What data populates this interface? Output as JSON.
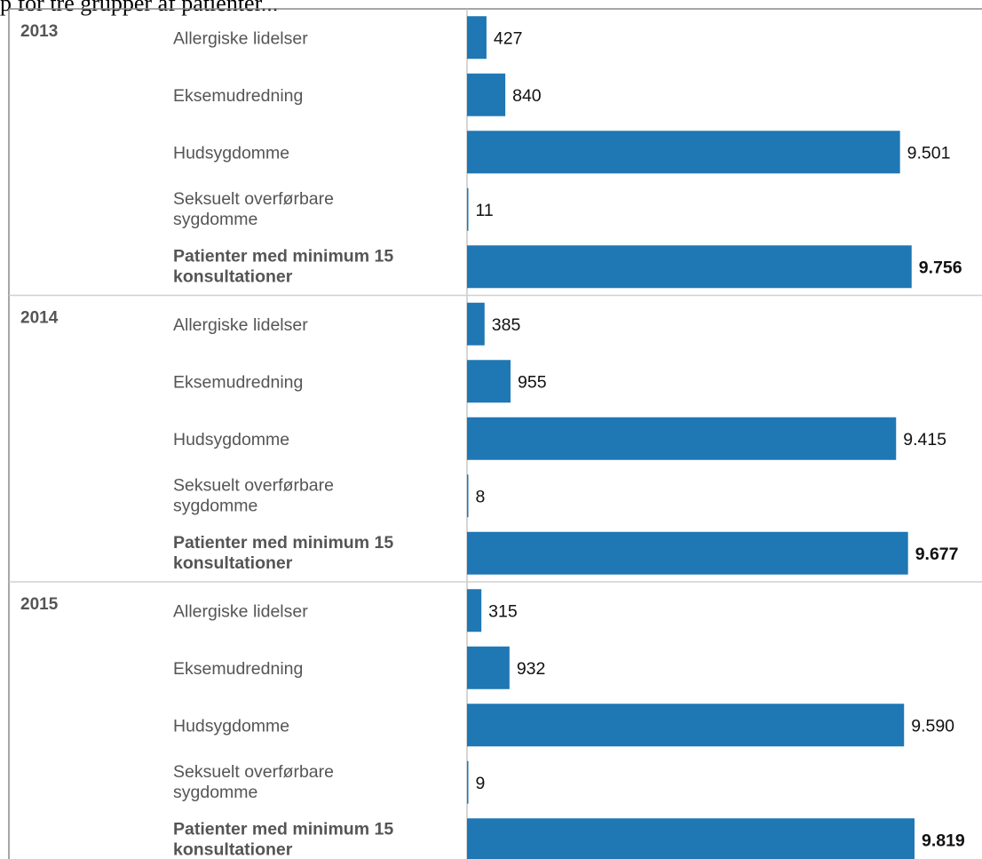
{
  "header_text": "p for tre grupper af patienter...",
  "chart_data": {
    "type": "bar",
    "orientation": "horizontal",
    "title": "",
    "xlabel": "",
    "ylabel": "",
    "grid": false,
    "colors": {
      "bar": "#1f77b4",
      "separator": "#d0d0d0",
      "frame": "#888888",
      "axis": "#c8c8c8"
    },
    "xlim": [
      0,
      11300
    ],
    "groups": [
      {
        "year": "2013",
        "items": [
          {
            "label": [
              "Allergiske lidelser"
            ],
            "value": 427,
            "value_label": "427",
            "bold": false
          },
          {
            "label": [
              "Eksemudredning"
            ],
            "value": 840,
            "value_label": "840",
            "bold": false
          },
          {
            "label": [
              "Hudsygdomme"
            ],
            "value": 9501,
            "value_label": "9.501",
            "bold": false
          },
          {
            "label": [
              "Seksuelt overførbare",
              "sygdomme"
            ],
            "value": 11,
            "value_label": "11",
            "bold": false
          },
          {
            "label": [
              "Patienter med minimum 15",
              "konsultationer"
            ],
            "value": 9756,
            "value_label": "9.756",
            "bold": true
          }
        ]
      },
      {
        "year": "2014",
        "items": [
          {
            "label": [
              "Allergiske lidelser"
            ],
            "value": 385,
            "value_label": "385",
            "bold": false
          },
          {
            "label": [
              "Eksemudredning"
            ],
            "value": 955,
            "value_label": "955",
            "bold": false
          },
          {
            "label": [
              "Hudsygdomme"
            ],
            "value": 9415,
            "value_label": "9.415",
            "bold": false
          },
          {
            "label": [
              "Seksuelt overførbare",
              "sygdomme"
            ],
            "value": 8,
            "value_label": "8",
            "bold": false
          },
          {
            "label": [
              "Patienter med minimum 15",
              "konsultationer"
            ],
            "value": 9677,
            "value_label": "9.677",
            "bold": true
          }
        ]
      },
      {
        "year": "2015",
        "items": [
          {
            "label": [
              "Allergiske lidelser"
            ],
            "value": 315,
            "value_label": "315",
            "bold": false
          },
          {
            "label": [
              "Eksemudredning"
            ],
            "value": 932,
            "value_label": "932",
            "bold": false
          },
          {
            "label": [
              "Hudsygdomme"
            ],
            "value": 9590,
            "value_label": "9.590",
            "bold": false
          },
          {
            "label": [
              "Seksuelt overførbare",
              "sygdomme"
            ],
            "value": 9,
            "value_label": "9",
            "bold": false
          },
          {
            "label": [
              "Patienter med minimum 15",
              "konsultationer"
            ],
            "value": 9819,
            "value_label": "9.819",
            "bold": true
          }
        ]
      }
    ]
  }
}
